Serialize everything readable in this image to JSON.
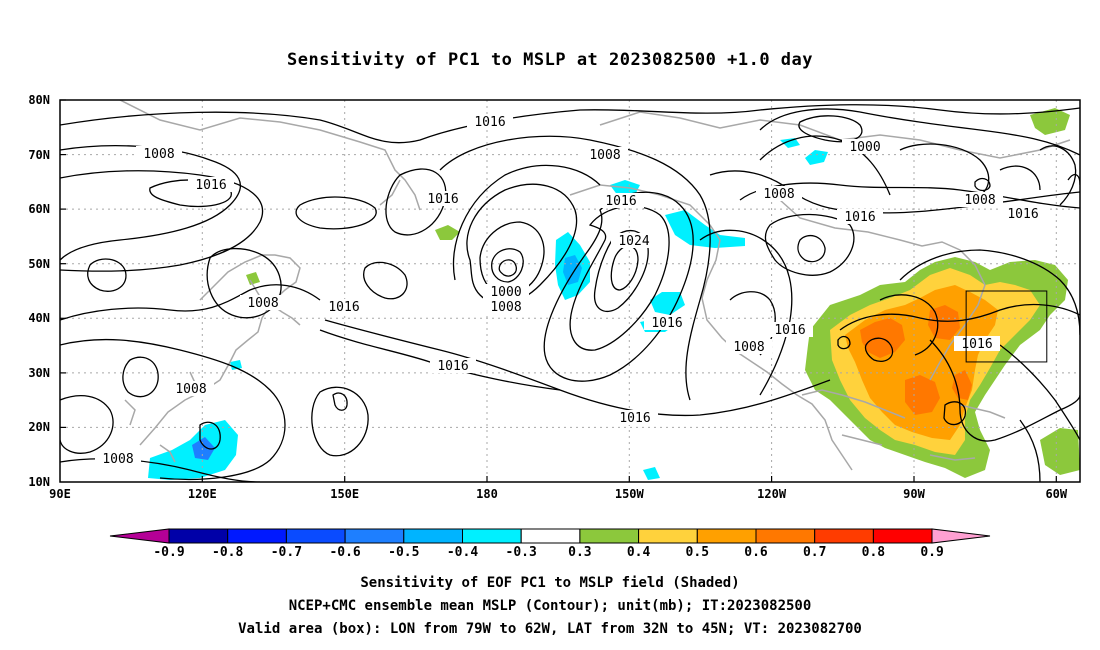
{
  "title": "Sensitivity of PC1 to MSLP at 2023082500 +1.0 day",
  "map": {
    "lon_range": [
      90,
      305
    ],
    "lat_range": [
      10,
      80
    ],
    "lat_labels": [
      "80N",
      "70N",
      "60N",
      "50N",
      "40N",
      "30N",
      "20N",
      "10N"
    ],
    "lon_labels": [
      "90E",
      "120E",
      "150E",
      "180",
      "150W",
      "120W",
      "90W",
      "60W"
    ],
    "valid_box": {
      "lon": [
        281,
        298
      ],
      "lat": [
        32,
        45
      ]
    }
  },
  "contour_labels": [
    "1016",
    "1008",
    "1016",
    "1016",
    "1008",
    "1000",
    "1008",
    "1016",
    "1016",
    "1008",
    "1000",
    "1008",
    "1016",
    "1024",
    "1016",
    "1008",
    "1016",
    "1016",
    "1008",
    "1016",
    "1016",
    "1008",
    "1016",
    "1008"
  ],
  "colorbar": {
    "ticks": [
      "-0.9",
      "-0.8",
      "-0.7",
      "-0.6",
      "-0.5",
      "-0.4",
      "-0.3",
      "0.3",
      "0.4",
      "0.5",
      "0.6",
      "0.7",
      "0.8",
      "0.9"
    ],
    "colors": [
      "#0000a8",
      "#0019ff",
      "#0a4bff",
      "#1e7fff",
      "#00b4ff",
      "#00f0ff",
      "#ffffff",
      "#8cc83c",
      "#ffd23c",
      "#ffa000",
      "#ff7800",
      "#ff3c00",
      "#ff0000"
    ],
    "low_color": "#b40096",
    "high_color": "#ffa0d2"
  },
  "caption": {
    "line1": "Sensitivity of EOF PC1 to MSLP field (Shaded)",
    "line2": "NCEP+CMC ensemble mean MSLP (Contour); unit(mb); IT:2023082500",
    "line3": "Valid area (box): LON from 79W to 62W, LAT from 32N to 45N; VT: 2023082700"
  }
}
